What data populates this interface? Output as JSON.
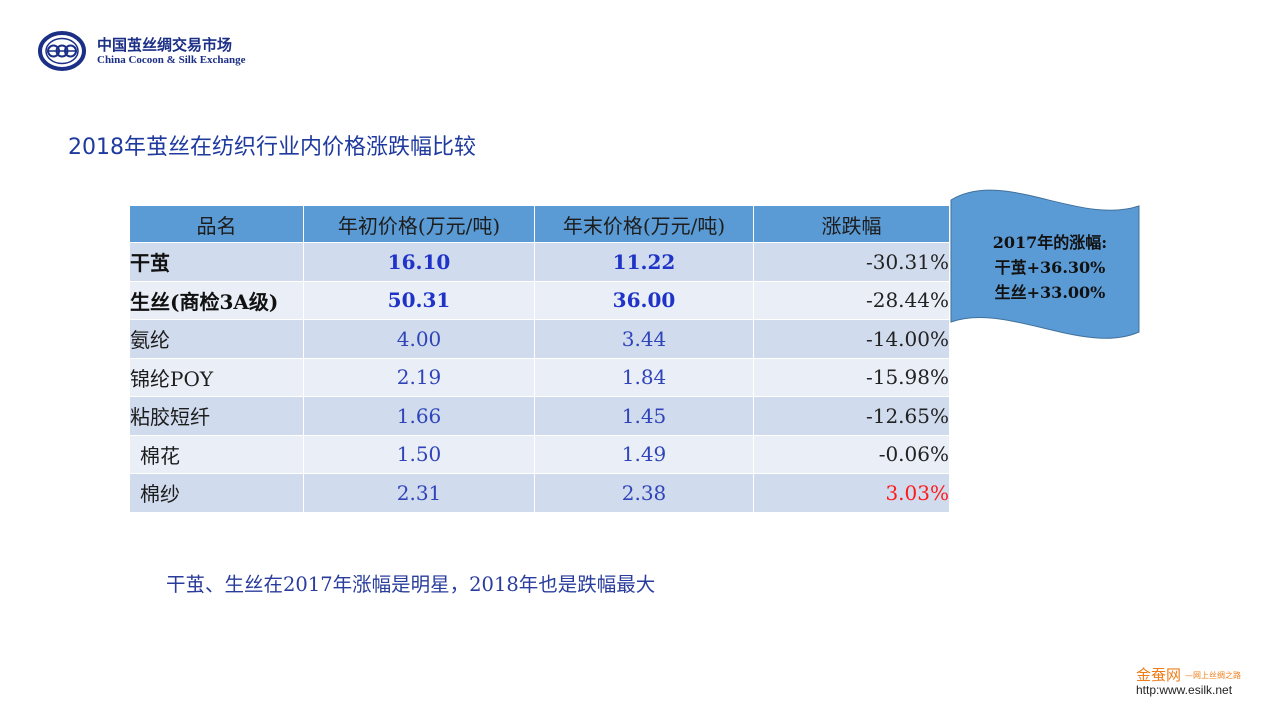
{
  "logo": {
    "name_cn": "中国茧丝绸交易市场",
    "name_en": "China Cocoon & Silk Exchange"
  },
  "title": "2018年茧丝在纺织行业内价格涨跌幅比较",
  "table": {
    "headers": [
      "品名",
      "年初价格(万元/吨)",
      "年末价格(万元/吨)",
      "涨跌幅"
    ],
    "rows": [
      {
        "name": "干茧",
        "start": "16.10",
        "end": "11.22",
        "change": "-30.31%"
      },
      {
        "name": "生丝(商检3A级)",
        "start": "50.31",
        "end": "36.00",
        "change": "-28.44%"
      },
      {
        "name": "氨纶",
        "start": "4.00",
        "end": "3.44",
        "change": "-14.00%"
      },
      {
        "name": "锦纶POY",
        "start": "2.19",
        "end": "1.84",
        "change": "-15.98%"
      },
      {
        "name": "粘胶短纤",
        "start": "1.66",
        "end": "1.45",
        "change": "-12.65%"
      },
      {
        "name": "棉花",
        "start": "1.50",
        "end": "1.49",
        "change": "-0.06%"
      },
      {
        "name": "棉纱",
        "start": "2.31",
        "end": "2.38",
        "change": "3.03%"
      }
    ]
  },
  "callout": {
    "heading": "2017年的涨幅:",
    "line1": "干茧+36.30%",
    "line2": "生丝+33.00%"
  },
  "caption": "干茧、生丝在2017年涨幅是明星，2018年也是跌幅最大",
  "brand": {
    "name": "金蚕网",
    "tagline": "—网上丝绸之路",
    "url": "http:www.esilk.net"
  },
  "colors": {
    "header_bg": "#5b9bd5",
    "row_odd": "#d0dbed",
    "row_even": "#e9eef7",
    "value_blue": "#2f44b8",
    "positive_red": "#ff1a1a",
    "brand_orange": "#f07d1a"
  }
}
